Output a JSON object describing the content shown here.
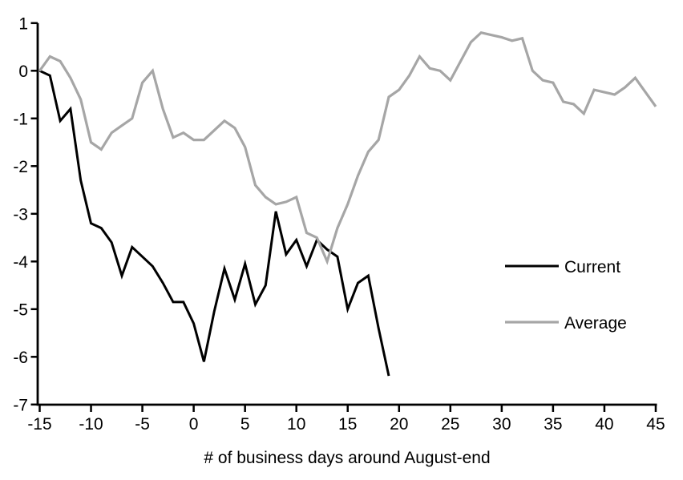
{
  "chart_data": {
    "type": "line",
    "title": "",
    "xlabel": "# of business days around August-end",
    "ylabel": "",
    "xlim": [
      -15,
      45
    ],
    "ylim": [
      -7,
      1
    ],
    "x_ticks": [
      -15,
      -10,
      -5,
      0,
      5,
      10,
      15,
      20,
      25,
      30,
      35,
      40,
      45
    ],
    "y_ticks": [
      1,
      0,
      -1,
      -2,
      -3,
      -4,
      -5,
      -6,
      -7
    ],
    "grid": false,
    "background": "#ffffff",
    "axis_color": "#000000",
    "legend_position": "middle-right",
    "legend": [
      "Current",
      "Average"
    ],
    "series": [
      {
        "name": "Current",
        "color": "#000000",
        "line_width": 3,
        "x": [
          -15,
          -14,
          -13,
          -12,
          -11,
          -10,
          -9,
          -8,
          -7,
          -6,
          -5,
          -4,
          -3,
          -2,
          -1,
          0,
          1,
          2,
          3,
          4,
          5,
          6,
          7,
          8,
          9,
          10,
          11,
          12,
          13,
          14,
          15,
          16,
          17,
          18,
          19
        ],
        "values": [
          0.0,
          -0.1,
          -1.05,
          -0.8,
          -2.3,
          -3.2,
          -3.3,
          -3.6,
          -4.3,
          -3.7,
          -3.9,
          -4.1,
          -4.45,
          -4.85,
          -4.85,
          -5.3,
          -6.1,
          -5.05,
          -4.15,
          -4.8,
          -4.05,
          -4.9,
          -4.5,
          -2.95,
          -3.85,
          -3.55,
          -4.1,
          -3.55,
          -3.75,
          -3.9,
          -5.0,
          -4.45,
          -4.3,
          -5.4,
          -6.4
        ]
      },
      {
        "name": "Average",
        "color": "#a6a6a6",
        "line_width": 3.2,
        "x": [
          -15,
          -14,
          -13,
          -12,
          -11,
          -10,
          -9,
          -8,
          -7,
          -6,
          -5,
          -4,
          -3,
          -2,
          -1,
          0,
          1,
          2,
          3,
          4,
          5,
          6,
          7,
          8,
          9,
          10,
          11,
          12,
          13,
          14,
          15,
          16,
          17,
          18,
          19,
          20,
          21,
          22,
          23,
          24,
          25,
          26,
          27,
          28,
          29,
          30,
          31,
          32,
          33,
          34,
          35,
          36,
          37,
          38,
          39,
          40,
          41,
          42,
          43,
          44,
          45
        ],
        "values": [
          0.0,
          0.3,
          0.2,
          -0.15,
          -0.6,
          -1.5,
          -1.65,
          -1.3,
          -1.15,
          -1.0,
          -0.25,
          0.0,
          -0.8,
          -1.4,
          -1.3,
          -1.45,
          -1.45,
          -1.25,
          -1.05,
          -1.2,
          -1.6,
          -2.4,
          -2.65,
          -2.8,
          -2.75,
          -2.65,
          -3.4,
          -3.5,
          -4.0,
          -3.3,
          -2.8,
          -2.2,
          -1.7,
          -1.45,
          -0.55,
          -0.4,
          -0.1,
          0.3,
          0.05,
          0.0,
          -0.2,
          0.2,
          0.6,
          0.8,
          0.75,
          0.7,
          0.63,
          0.68,
          0.0,
          -0.2,
          -0.25,
          -0.65,
          -0.7,
          -0.9,
          -0.4,
          -0.45,
          -0.5,
          -0.35,
          -0.15,
          -0.45,
          -0.75
        ]
      }
    ]
  }
}
